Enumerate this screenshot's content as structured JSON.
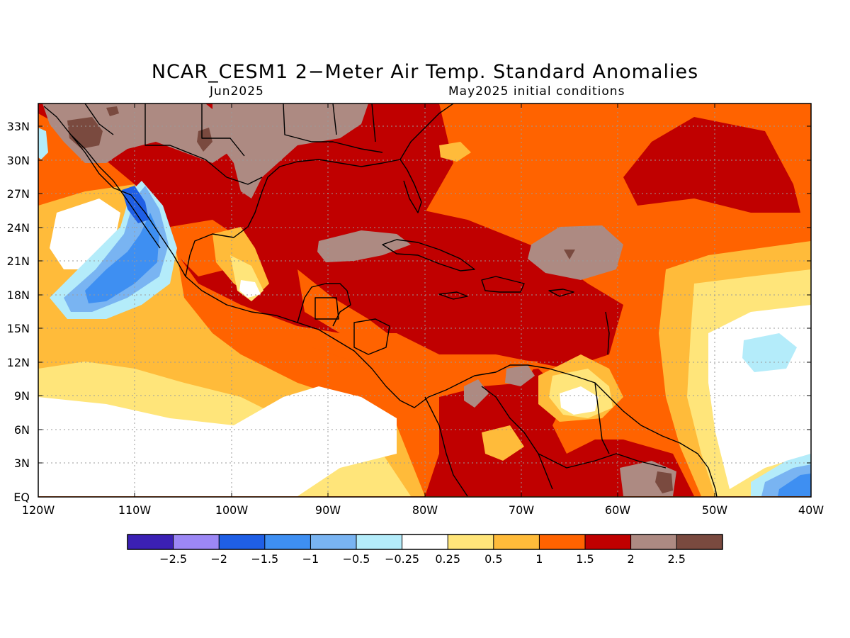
{
  "title": "NCAR_CESM1 2−Meter Air Temp. Standard Anomalies",
  "subtitle_left": "Jun2025",
  "subtitle_right": "May2025 initial conditions",
  "map": {
    "lat_labels": [
      "33N",
      "30N",
      "27N",
      "24N",
      "21N",
      "18N",
      "15N",
      "12N",
      "9N",
      "6N",
      "3N",
      "EQ"
    ],
    "lon_labels": [
      "120W",
      "110W",
      "100W",
      "90W",
      "80W",
      "70W",
      "60W",
      "50W",
      "40W"
    ],
    "ocean_color": "#ff6300"
  },
  "colorbar": {
    "labels": [
      "−2.5",
      "−2",
      "−1.5",
      "−1",
      "−0.5",
      "−0.25",
      "0.25",
      "0.5",
      "1",
      "1.5",
      "2",
      "2.5"
    ],
    "colors": [
      "#3b20b4",
      "#9c87f5",
      "#1f5fe6",
      "#3e8ff2",
      "#79b4f2",
      "#b4ecfa",
      "#ffffff",
      "#ffe57a",
      "#ffbb3a",
      "#ff6300",
      "#c00000",
      "#ad8a82",
      "#7a4a3f"
    ]
  }
}
